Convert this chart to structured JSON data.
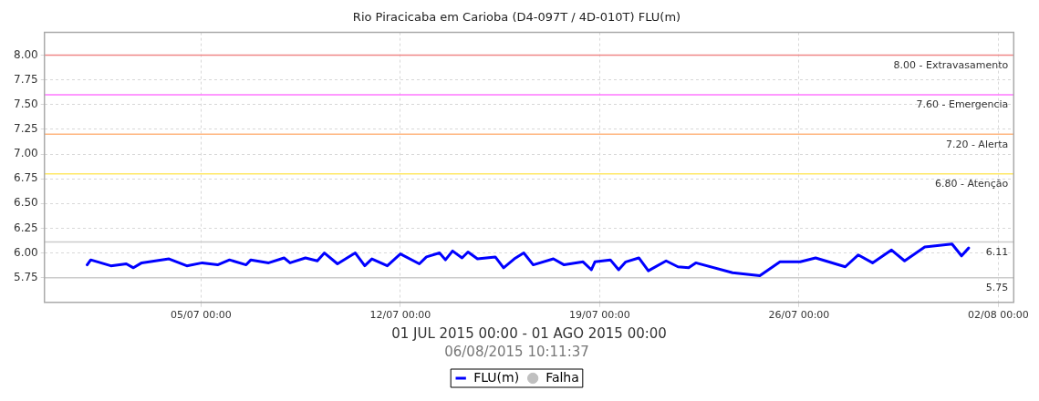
{
  "chart_data": {
    "type": "line",
    "title": "Rio Piracicaba em Carioba (D4-097T / 4D-010T) FLU(m)",
    "xlabel": "01 JUL 2015 00:00 - 01 AGO 2015 00:00",
    "annotations": [
      "06/08/2015 10:11:37"
    ],
    "x": [
      "2015-07-01T00:00",
      "2015-07-01T03:00",
      "2015-07-01T20:00",
      "2015-07-02T09:00",
      "2015-07-02T15:00",
      "2015-07-02T22:00",
      "2015-07-03T21:00",
      "2015-07-04T12:00",
      "2015-07-05T01:00",
      "2015-07-05T14:00",
      "2015-07-06T00:00",
      "2015-07-06T14:00",
      "2015-07-06T18:00",
      "2015-07-07T09:00",
      "2015-07-07T22:00",
      "2015-07-08T03:00",
      "2015-07-08T16:00",
      "2015-07-09T02:00",
      "2015-07-09T08:00",
      "2015-07-09T19:00",
      "2015-07-10T10:00",
      "2015-07-10T18:00",
      "2015-07-11T00:00",
      "2015-07-11T13:00",
      "2015-07-12T00:00",
      "2015-07-12T16:00",
      "2015-07-12T22:00",
      "2015-07-13T09:00",
      "2015-07-13T14:00",
      "2015-07-13T20:00",
      "2015-07-14T04:00",
      "2015-07-14T09:00",
      "2015-07-14T17:00",
      "2015-07-15T08:00",
      "2015-07-15T15:00",
      "2015-07-16T00:00",
      "2015-07-16T08:00",
      "2015-07-16T16:00",
      "2015-07-17T09:00",
      "2015-07-17T18:00",
      "2015-07-18T10:00",
      "2015-07-18T17:00",
      "2015-07-18T20:00",
      "2015-07-19T09:00",
      "2015-07-19T16:00",
      "2015-07-19T22:00",
      "2015-07-20T09:00",
      "2015-07-20T17:00",
      "2015-07-21T08:00",
      "2015-07-21T18:00",
      "2015-07-22T03:00",
      "2015-07-22T09:00",
      "2015-07-23T16:00",
      "2015-07-24T15:00",
      "2015-07-25T08:00",
      "2015-07-26T01:00",
      "2015-07-26T14:00",
      "2015-07-27T15:00",
      "2015-07-28T02:00",
      "2015-07-28T14:00",
      "2015-07-29T06:00",
      "2015-07-29T17:00",
      "2015-07-30T10:00",
      "2015-07-31T09:00",
      "2015-07-31T17:00",
      "2015-07-31T23:00"
    ],
    "series": [
      {
        "name": "FLU(m)",
        "type": "line",
        "color": "#0000ff",
        "values": [
          5.88,
          5.93,
          5.87,
          5.89,
          5.85,
          5.9,
          5.94,
          5.87,
          5.9,
          5.88,
          5.93,
          5.88,
          5.93,
          5.9,
          5.95,
          5.9,
          5.95,
          5.92,
          6.0,
          5.89,
          6.0,
          5.87,
          5.94,
          5.87,
          5.99,
          5.89,
          5.96,
          6.0,
          5.93,
          6.02,
          5.95,
          6.01,
          5.94,
          5.96,
          5.85,
          5.94,
          6.0,
          5.88,
          5.94,
          5.88,
          5.91,
          5.83,
          5.91,
          5.93,
          5.83,
          5.91,
          5.95,
          5.82,
          5.92,
          5.86,
          5.85,
          5.9,
          5.8,
          5.77,
          5.91,
          5.91,
          5.95,
          5.86,
          5.98,
          5.9,
          6.03,
          5.92,
          6.06,
          6.09,
          5.97,
          6.05
        ]
      },
      {
        "name": "Falha",
        "type": "scatter",
        "color": "#c0c0c0",
        "marker": "circle",
        "values": [
          null,
          null,
          null,
          null,
          null,
          null,
          null,
          null,
          null,
          null,
          null,
          null,
          null,
          null,
          null,
          null,
          null,
          null,
          null,
          null,
          null,
          null,
          null,
          null,
          null,
          null,
          null,
          null,
          null,
          null,
          null,
          null,
          null,
          null,
          null,
          null,
          null,
          null,
          null,
          null,
          null,
          null,
          null,
          null,
          null,
          null,
          null,
          null,
          null,
          null,
          null,
          null,
          null,
          null,
          null,
          null,
          null,
          null,
          null,
          null,
          null,
          null,
          null,
          null,
          null,
          null
        ]
      }
    ],
    "xlim": [
      "2015-06-29T12:00",
      "2015-08-02T13:00"
    ],
    "xticks": [
      {
        "value": "2015-07-05T00:00",
        "label": "05/07 00:00"
      },
      {
        "value": "2015-07-12T00:00",
        "label": "12/07 00:00"
      },
      {
        "value": "2015-07-19T00:00",
        "label": "19/07 00:00"
      },
      {
        "value": "2015-07-26T00:00",
        "label": "26/07 00:00"
      },
      {
        "value": "2015-08-02T00:00",
        "label": "02/08 00:00"
      }
    ],
    "ylim": [
      5.5,
      8.23
    ],
    "yticks": [
      {
        "value": 5.75,
        "label": "5.75"
      },
      {
        "value": 6,
        "label": "6.00"
      },
      {
        "value": 6.25,
        "label": "6.25"
      },
      {
        "value": 6.5,
        "label": "6.50"
      },
      {
        "value": 6.75,
        "label": "6.75"
      },
      {
        "value": 7,
        "label": "7.00"
      },
      {
        "value": 7.25,
        "label": "7.25"
      },
      {
        "value": 7.5,
        "label": "7.50"
      },
      {
        "value": 7.75,
        "label": "7.75"
      },
      {
        "value": 8,
        "label": "8.00"
      }
    ],
    "ref_lines": [
      {
        "axis": "y",
        "value": 8.0,
        "label": "8.00 - Extravasamento",
        "color": "#f08888"
      },
      {
        "axis": "y",
        "value": 7.6,
        "label": "7.60 - Emergencia",
        "color": "#ff77ff"
      },
      {
        "axis": "y",
        "value": 7.2,
        "label": "7.20 - Alerta",
        "color": "#ffb680"
      },
      {
        "axis": "y",
        "value": 6.8,
        "label": "6.80 - Atenção",
        "color": "#ffe866"
      },
      {
        "axis": "y",
        "value": 6.11,
        "label": "6.11",
        "color": "#cccccc"
      },
      {
        "axis": "y",
        "value": 5.75,
        "label": "5.75",
        "color": "#cccccc"
      }
    ],
    "grid": true,
    "legend": "bottom",
    "marker": "none",
    "line_style": "solid"
  }
}
